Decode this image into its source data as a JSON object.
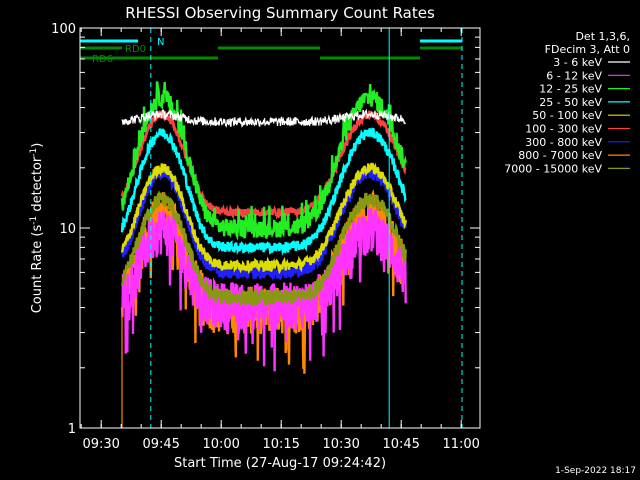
{
  "chart_data": {
    "type": "line",
    "title": "RHESSI Observing Summary Count Rates",
    "xlabel": "Start Time (27-Aug-17 09:24:42)",
    "ylabel_main": "Count Rate (s",
    "ylabel_sup1": "-1",
    "ylabel_mid": " detector",
    "ylabel_sup2": "-1",
    "ylabel_end": ")",
    "yscale": "log",
    "ylim": [
      1,
      100
    ],
    "xlim_minutes": [
      0,
      100
    ],
    "x_ticks": [
      {
        "label": "09:30",
        "min": 5.3
      },
      {
        "label": "09:45",
        "min": 20.3
      },
      {
        "label": "10:00",
        "min": 35.3
      },
      {
        "label": "10:15",
        "min": 50.3
      },
      {
        "label": "10:30",
        "min": 65.3
      },
      {
        "label": "10:45",
        "min": 80.3
      },
      {
        "label": "11:00",
        "min": 95.3
      }
    ],
    "y_ticks": [
      {
        "label": "1",
        "value": 1
      },
      {
        "label": "10",
        "value": 10
      },
      {
        "label": "100",
        "value": 100
      }
    ],
    "legend_header": [
      "Det 1,3,6,",
      "FDecim 3, Att 0"
    ],
    "series": [
      {
        "name": "3 - 6 keV",
        "color": "#ffffff",
        "plateau": 33,
        "base": 34,
        "peak": 1.3,
        "noise": 0.035
      },
      {
        "name": "6 - 12 keV",
        "color": "#ff33ff",
        "base": 4.2,
        "peak": 10.0,
        "noise": 0.09
      },
      {
        "name": "12 - 25 keV",
        "color": "#22ee22",
        "base": 10.0,
        "peak": 45.0,
        "noise": 0.07
      },
      {
        "name": "25 - 50 keV",
        "color": "#00ffff",
        "base": 8.0,
        "peak": 30.0,
        "noise": 0.04
      },
      {
        "name": "50 - 100 keV",
        "color": "#dddd00",
        "base": 6.5,
        "peak": 20.0,
        "noise": 0.04
      },
      {
        "name": "100 - 300 keV",
        "color": "#ff4040",
        "base": 12.0,
        "peak": 37.0,
        "noise": 0.03
      },
      {
        "name": "300 - 800 keV",
        "color": "#2020ff",
        "base": 6.0,
        "peak": 19.0,
        "noise": 0.05
      },
      {
        "name": "800 - 7000 keV",
        "color": "#ff8800",
        "base": 4.0,
        "peak": 12.0,
        "noise": 0.09
      },
      {
        "name": "7000 - 15000 keV",
        "color": "#889911",
        "base": 4.5,
        "peak": 14.0,
        "noise": 0.06
      }
    ],
    "data_range_min": [
      10.5,
      81.5
    ],
    "flags": [
      {
        "name": "N",
        "color": "#00ffff",
        "segments": [
          [
            0,
            14.5
          ],
          [
            85,
            95.5
          ]
        ]
      },
      {
        "name": "RD0",
        "color": "#008800",
        "segments": [
          [
            0,
            10.5
          ],
          [
            34.5,
            60
          ],
          [
            85,
            95.5
          ]
        ]
      },
      {
        "name": "RD6",
        "color": "#008800",
        "segments": [
          [
            0,
            34.5
          ],
          [
            60,
            85
          ]
        ]
      }
    ],
    "vlines": [
      {
        "min": 0,
        "color": "#00ffff",
        "style": "solid"
      },
      {
        "min": 17.7,
        "color": "#00ffff",
        "style": "dashed"
      },
      {
        "min": 77.3,
        "color": "#00ffff",
        "style": "solid"
      },
      {
        "min": 95.5,
        "color": "#00ffff",
        "style": "dashed"
      }
    ],
    "footer_time": "1-Sep-2022 18:17"
  }
}
